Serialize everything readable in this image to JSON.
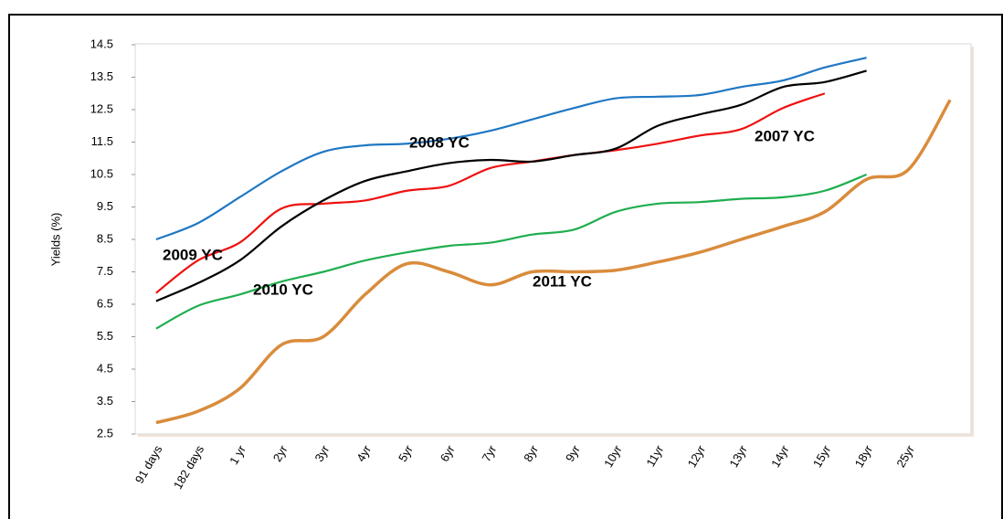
{
  "chart_data": {
    "type": "line",
    "ylabel": "Yields (%)",
    "categories": [
      "91 days",
      "182 days",
      "1 yr",
      "2yr",
      "3yr",
      "4yr",
      "5yr",
      "6yr",
      "7yr",
      "8yr",
      "9yr",
      "10yr",
      "11yr",
      "12yr",
      "13yr",
      "14yr",
      "15yr",
      "18yr",
      "25yr",
      null
    ],
    "ylim": [
      2.5,
      14.5
    ],
    "yticks": [
      2.5,
      3.5,
      4.5,
      5.5,
      6.5,
      7.5,
      8.5,
      9.5,
      10.5,
      11.5,
      12.5,
      13.5,
      14.5
    ],
    "series": [
      {
        "name": "2008 YC",
        "color": "#1f77c4",
        "values": [
          8.5,
          9.0,
          9.8,
          10.6,
          11.2,
          11.4,
          11.45,
          11.6,
          11.85,
          12.2,
          12.55,
          12.85,
          12.9,
          12.95,
          13.2,
          13.4,
          13.8,
          14.1,
          null,
          null
        ]
      },
      {
        "name": "2007 YC",
        "color": "#ee1111",
        "values": [
          6.85,
          7.85,
          8.4,
          9.45,
          9.6,
          9.7,
          10.0,
          10.15,
          10.7,
          10.9,
          11.1,
          11.25,
          11.45,
          11.7,
          11.9,
          12.55,
          13.0,
          null,
          null,
          null
        ]
      },
      {
        "name": "2009 YC",
        "color": "#000000",
        "values": [
          6.6,
          7.15,
          7.85,
          8.9,
          9.7,
          10.3,
          10.6,
          10.85,
          10.95,
          10.9,
          11.1,
          11.3,
          12.0,
          12.35,
          12.65,
          13.2,
          13.35,
          13.7,
          null,
          null
        ]
      },
      {
        "name": "2010 YC",
        "color": "#1fae4f",
        "values": [
          5.75,
          6.45,
          6.8,
          7.2,
          7.5,
          7.85,
          8.1,
          8.3,
          8.4,
          8.65,
          8.8,
          9.35,
          9.6,
          9.65,
          9.75,
          9.8,
          10.0,
          10.5,
          null,
          null
        ]
      },
      {
        "name": "2011 YC",
        "color": "#d98c3c",
        "values": [
          2.85,
          3.2,
          3.9,
          5.25,
          5.5,
          6.8,
          7.75,
          7.5,
          7.1,
          7.5,
          7.5,
          7.55,
          7.8,
          8.1,
          8.5,
          8.9,
          9.35,
          10.35,
          10.65,
          12.8
        ]
      }
    ]
  }
}
